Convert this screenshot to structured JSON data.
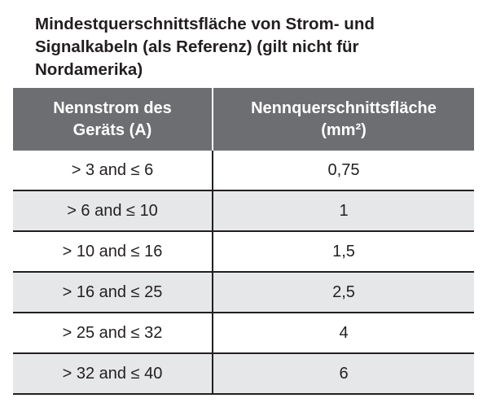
{
  "header": {
    "title": [
      "Mindestquerschnittsfläche von Strom- und",
      "Signalkabeln (als Referenz) (gilt nicht für",
      "Nordamerika)"
    ]
  },
  "table": {
    "columns": [
      [
        "Nennstrom des",
        "Geräts (A)"
      ],
      [
        "Nennquerschnittsfläche",
        "(mm²)"
      ]
    ],
    "rows": [
      [
        "> 3 and ≤ 6",
        "0,75"
      ],
      [
        "> 6 and ≤ 10",
        "1"
      ],
      [
        "> 10 and ≤ 16",
        "1,5"
      ],
      [
        "> 16 and ≤ 25",
        "2,5"
      ],
      [
        "> 25 and ≤ 32",
        "4"
      ],
      [
        "> 32 and ≤ 40",
        "6"
      ]
    ]
  }
}
